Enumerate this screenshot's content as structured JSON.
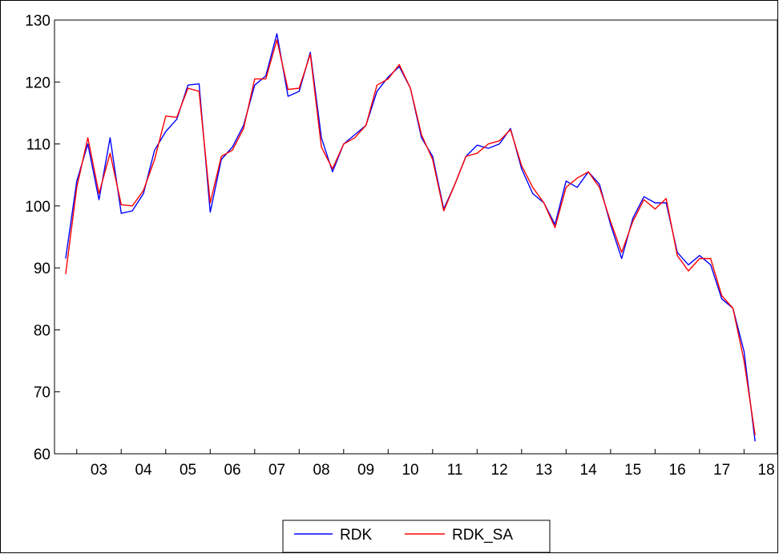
{
  "chart_data": {
    "type": "line",
    "title": "",
    "xlabel": "",
    "ylabel": "",
    "ylim": [
      60,
      130
    ],
    "y_ticks": [
      60,
      70,
      80,
      90,
      100,
      110,
      120,
      130
    ],
    "x_tick_labels": [
      "03",
      "04",
      "05",
      "06",
      "07",
      "08",
      "09",
      "10",
      "11",
      "12",
      "13",
      "14",
      "15",
      "16",
      "17",
      "18"
    ],
    "x_start_year": 2002.75,
    "x_step_years": 0.25,
    "grid": false,
    "legend_position": "bottom-center",
    "series": [
      {
        "name": "RDK",
        "color": "#0000ff",
        "values": [
          91.5,
          104.0,
          110.0,
          101.0,
          111.0,
          98.8,
          99.2,
          102.0,
          109.0,
          112.0,
          114.0,
          119.5,
          119.7,
          99.0,
          107.5,
          109.5,
          113.0,
          119.5,
          121.0,
          127.8,
          117.7,
          118.5,
          124.8,
          111.0,
          105.5,
          110.0,
          111.5,
          113.0,
          118.5,
          120.8,
          122.5,
          119.0,
          111.0,
          108.0,
          99.5,
          103.5,
          108.0,
          109.8,
          109.3,
          110.0,
          112.5,
          106.0,
          102.0,
          100.5,
          97.0,
          104.0,
          103.0,
          105.5,
          103.5,
          97.0,
          91.5,
          98.0,
          101.5,
          100.5,
          100.5,
          92.5,
          90.5,
          92.0,
          90.5,
          85.0,
          83.5,
          76.5,
          62.0
        ]
      },
      {
        "name": "RDK_SA",
        "color": "#ff0000",
        "values": [
          89.0,
          103.0,
          111.0,
          102.0,
          108.5,
          100.2,
          100.0,
          102.5,
          107.5,
          114.5,
          114.3,
          119.0,
          118.5,
          100.5,
          108.0,
          109.0,
          112.5,
          120.5,
          120.5,
          126.8,
          118.8,
          119.0,
          124.5,
          109.5,
          106.0,
          110.0,
          111.0,
          113.0,
          119.5,
          120.5,
          122.8,
          119.0,
          111.5,
          107.5,
          99.2,
          103.5,
          108.0,
          108.5,
          110.0,
          110.5,
          112.3,
          106.5,
          103.0,
          100.5,
          96.5,
          103.0,
          104.5,
          105.5,
          103.0,
          97.5,
          92.5,
          97.5,
          101.0,
          99.5,
          101.2,
          92.0,
          89.5,
          91.5,
          91.5,
          85.5,
          83.5,
          75.0,
          63.0
        ]
      }
    ]
  }
}
